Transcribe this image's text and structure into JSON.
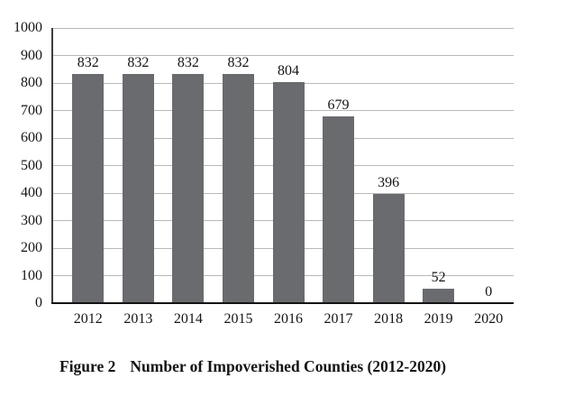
{
  "caption": {
    "figure_label": "Figure 2",
    "title": "Number of Impoverished Counties (2012-2020)"
  },
  "chart_data": {
    "type": "bar",
    "title": "Figure 2 Number of Impoverished Counties (2012-2020)",
    "categories": [
      "2012",
      "2013",
      "2014",
      "2015",
      "2016",
      "2017",
      "2018",
      "2019",
      "2020"
    ],
    "values": [
      832,
      832,
      832,
      832,
      804,
      679,
      396,
      52,
      0
    ],
    "xlabel": "",
    "ylabel": "",
    "ylim": [
      0,
      1000
    ],
    "ytick_step": 100,
    "grid": true,
    "legend": false,
    "data_labels": true,
    "colors": {
      "bar": "#696b6e",
      "gridline": "#b9b9b9",
      "y_axis_line": "#3d3d3d",
      "x_axis_line": "#141414",
      "text": "#141414",
      "background": "#ffffff"
    }
  }
}
